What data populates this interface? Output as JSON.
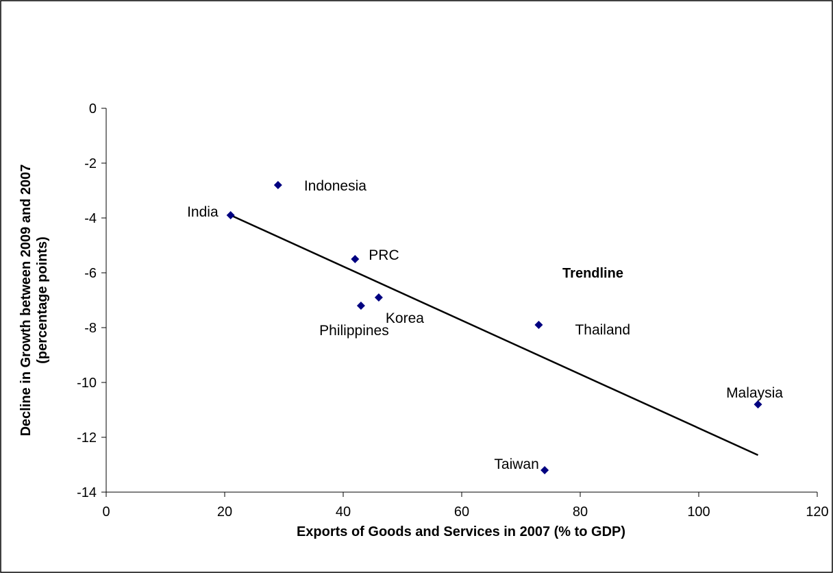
{
  "chart_data": {
    "type": "scatter",
    "xlabel": "Exports of Goods and Services in 2007 (% to GDP)",
    "ylabel_lines": [
      "Decline in Growth between 2009 and 2007",
      "(percentage points)"
    ],
    "xlim": [
      0,
      120
    ],
    "ylim": [
      -14,
      0
    ],
    "x_ticks": [
      0,
      20,
      40,
      60,
      80,
      100,
      120
    ],
    "y_ticks": [
      0,
      -2,
      -4,
      -6,
      -8,
      -10,
      -12,
      -14
    ],
    "grid": false,
    "legend": "none",
    "marker_color": "#000080",
    "marker_shape": "diamond",
    "points": [
      {
        "label": "India",
        "x": 21,
        "y": -3.9
      },
      {
        "label": "Indonesia",
        "x": 29,
        "y": -2.8
      },
      {
        "label": "PRC",
        "x": 42,
        "y": -5.5
      },
      {
        "label": "Philippines",
        "x": 43,
        "y": -7.2
      },
      {
        "label": "Korea",
        "x": 46,
        "y": -6.9
      },
      {
        "label": "Thailand",
        "x": 73,
        "y": -7.9
      },
      {
        "label": "Taiwan",
        "x": 74,
        "y": -13.2
      },
      {
        "label": "Malaysia",
        "x": 110,
        "y": -10.8
      }
    ],
    "trendline": {
      "x0": 21,
      "y0": -3.9,
      "x1": 110,
      "y1": -12.65
    },
    "annotations": [
      {
        "text": "Trendline",
        "x": 77,
        "y": -6.0
      }
    ]
  }
}
